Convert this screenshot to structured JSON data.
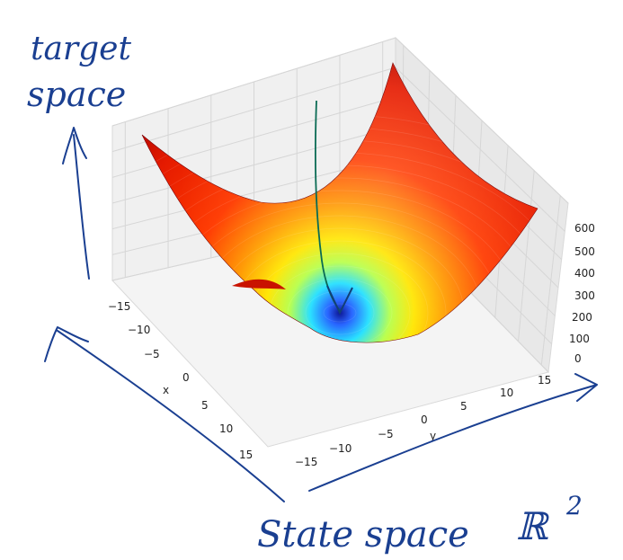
{
  "chart_data": {
    "type": "surface3d",
    "title": "",
    "function": "z = 1.1*x^2 + 1.5*y^2",
    "colormap": "jet",
    "minimum": {
      "x": 0,
      "y": 0,
      "z": 0
    },
    "xlabel": "x",
    "ylabel": "y",
    "zlabel": "",
    "xlim": [
      -17,
      17
    ],
    "ylim": [
      -17,
      17
    ],
    "zlim": [
      0,
      650
    ],
    "x_ticks": [
      "−15",
      "−10",
      "−5",
      "0",
      "5",
      "10",
      "15"
    ],
    "y_ticks": [
      "−15",
      "−10",
      "−5",
      "0",
      "5",
      "10",
      "15"
    ],
    "z_ticks": [
      "0",
      "100",
      "200",
      "300",
      "400",
      "500",
      "600"
    ],
    "descent_arrow": {
      "from_z": 620,
      "to_z": 0
    }
  },
  "annotations": {
    "target_space": {
      "line1": "target",
      "line2": "space"
    },
    "state_space": "State space",
    "real_plane": "ℝ",
    "real_plane_exp": "2"
  }
}
